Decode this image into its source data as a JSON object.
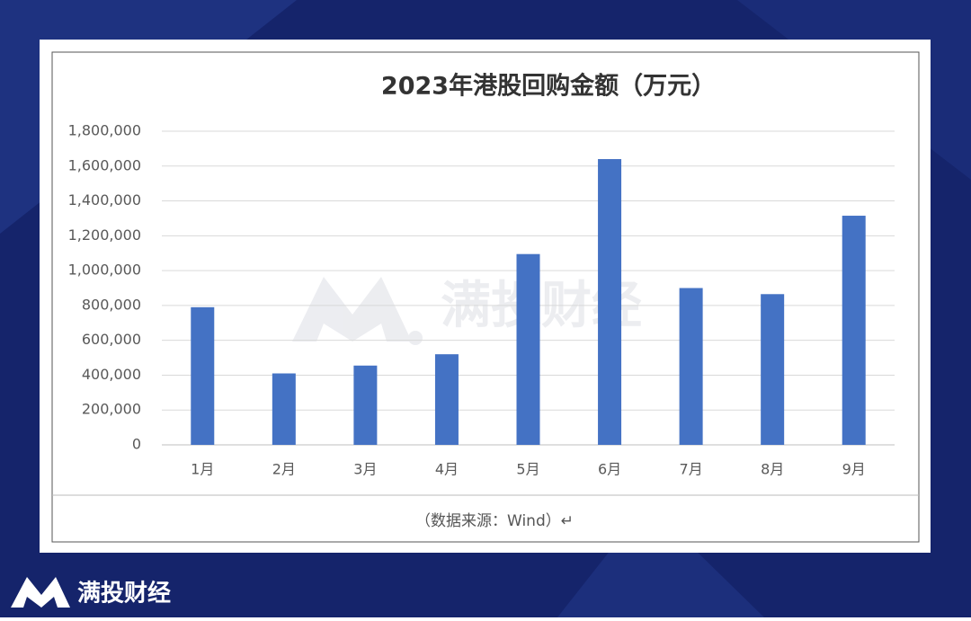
{
  "chart_data": {
    "type": "bar",
    "title": "2023年港股回购金额（万元）",
    "categories": [
      "1月",
      "2月",
      "3月",
      "4月",
      "5月",
      "6月",
      "7月",
      "8月",
      "9月"
    ],
    "values": [
      790000,
      410000,
      455000,
      520000,
      1095000,
      1640000,
      900000,
      865000,
      1315000
    ],
    "color": "#4472c4",
    "ylim": [
      0,
      1800000
    ],
    "yticks": [
      0,
      {
        "value": 200000,
        "label": "200,000"
      },
      {
        "value": 400000,
        "label": "400,000"
      },
      {
        "value": 600000,
        "label": "600,000"
      },
      {
        "value": 800000,
        "label": "800,000"
      },
      {
        "value": 1000000,
        "label": "1,000,000"
      },
      {
        "value": 1200000,
        "label": "1,200,000"
      },
      {
        "value": 1400000,
        "label": "1,400,000"
      },
      {
        "value": 1600000,
        "label": "1,600,000"
      },
      {
        "value": 1800000,
        "label": "1,800,000"
      }
    ],
    "grid": true,
    "source": "（数据来源：Wind）↵"
  },
  "watermark": "满投财经",
  "brand": "满投财经"
}
